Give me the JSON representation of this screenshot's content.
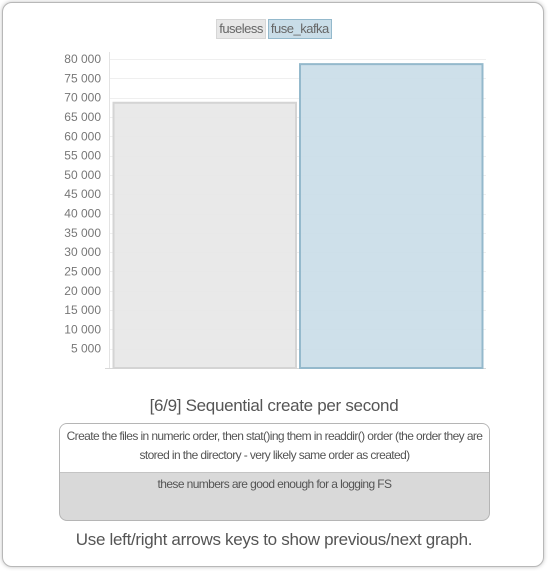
{
  "chart_data": {
    "type": "bar",
    "title": "[6/9] Sequential create per second",
    "categories": [
      ""
    ],
    "series": [
      {
        "name": "fuseless",
        "values": [
          68800
        ],
        "color": "#e7e7e7",
        "stroke": "#d4d4d4"
      },
      {
        "name": "fuse_kafka",
        "values": [
          78800
        ],
        "color": "#c9dde8",
        "stroke": "#94b9cc"
      }
    ],
    "xlabel": "",
    "ylabel": "",
    "ylim": [
      0,
      80000
    ],
    "yticks": [
      5000,
      10000,
      15000,
      20000,
      25000,
      30000,
      35000,
      40000,
      45000,
      50000,
      55000,
      60000,
      65000,
      70000,
      75000,
      80000
    ],
    "ytick_labels": [
      "5 000",
      "10 000",
      "15 000",
      "20 000",
      "25 000",
      "30 000",
      "35 000",
      "40 000",
      "45 000",
      "50 000",
      "55 000",
      "60 000",
      "65 000",
      "70 000",
      "75 000",
      "80 000"
    ],
    "grid": true,
    "legend_position": "top-center"
  },
  "description": {
    "main": "Create the files in numeric order, then stat()ing them in readdir() order (the order they are stored in the directory - very likely same order as created)",
    "note": "these numbers are good enough for a logging FS"
  },
  "footer": "Use left/right arrows keys to show previous/next graph."
}
